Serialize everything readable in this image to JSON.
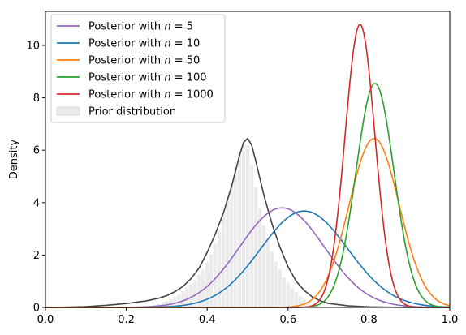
{
  "chart_data": {
    "type": "line",
    "xlabel": "",
    "ylabel": "Density",
    "xlim": [
      0.0,
      1.0
    ],
    "ylim": [
      0,
      11.3
    ],
    "x_ticks": [
      "0.0",
      "0.2",
      "0.4",
      "0.6",
      "0.8",
      "1.0"
    ],
    "y_ticks": [
      "0",
      "2",
      "4",
      "6",
      "8",
      "10"
    ],
    "grid": false,
    "legend_position": "top-left",
    "series": [
      {
        "name": "Posterior with n = 5",
        "legend_prefix": "Posterior with ",
        "legend_math": "n = 5",
        "color": "#9467bd",
        "type": "line",
        "mean": 0.585,
        "sd": 0.105,
        "peak": 3.8
      },
      {
        "name": "Posterior with n = 10",
        "legend_prefix": "Posterior with ",
        "legend_math": "n = 10",
        "color": "#1f77b4",
        "type": "line",
        "mean": 0.64,
        "sd": 0.108,
        "peak": 3.68
      },
      {
        "name": "Posterior with n = 50",
        "legend_prefix": "Posterior with ",
        "legend_math": "n = 50",
        "color": "#ff7f0e",
        "type": "line",
        "mean": 0.813,
        "sd": 0.062,
        "peak": 6.45
      },
      {
        "name": "Posterior with n = 100",
        "legend_prefix": "Posterior with ",
        "legend_math": "n = 100",
        "color": "#2ca02c",
        "type": "line",
        "mean": 0.815,
        "sd": 0.047,
        "peak": 8.55
      },
      {
        "name": "Posterior with n = 1000",
        "legend_prefix": "Posterior with ",
        "legend_math": "n = 1000",
        "color": "#d62728",
        "type": "line",
        "mean": 0.778,
        "sd": 0.037,
        "peak": 10.8
      }
    ],
    "prior": {
      "name": "Prior distribution",
      "color": "#dddddd",
      "line_color": "#444444",
      "bins_x": [
        0.27,
        0.28,
        0.29,
        0.3,
        0.31,
        0.32,
        0.33,
        0.34,
        0.35,
        0.36,
        0.37,
        0.38,
        0.39,
        0.4,
        0.41,
        0.42,
        0.43,
        0.44,
        0.45,
        0.46,
        0.47,
        0.48,
        0.49,
        0.5,
        0.51,
        0.52,
        0.53,
        0.54,
        0.55,
        0.56,
        0.57,
        0.58,
        0.59,
        0.6,
        0.61,
        0.62,
        0.63,
        0.64,
        0.65,
        0.66
      ],
      "bin_heights": [
        0.12,
        0.15,
        0.2,
        0.25,
        0.32,
        0.42,
        0.5,
        0.62,
        0.75,
        0.9,
        1.05,
        1.25,
        1.45,
        1.75,
        2.05,
        2.45,
        2.9,
        3.55,
        4.15,
        4.75,
        5.35,
        5.95,
        6.3,
        6.2,
        5.45,
        4.6,
        3.8,
        3.15,
        2.6,
        2.15,
        1.75,
        1.45,
        1.15,
        0.95,
        0.75,
        0.6,
        0.45,
        0.32,
        0.22,
        0.12
      ],
      "curve_x": [
        0.0,
        0.05,
        0.1,
        0.15,
        0.2,
        0.25,
        0.28,
        0.3,
        0.32,
        0.34,
        0.36,
        0.38,
        0.4,
        0.42,
        0.44,
        0.46,
        0.48,
        0.49,
        0.5,
        0.51,
        0.52,
        0.54,
        0.56,
        0.58,
        0.6,
        0.62,
        0.64,
        0.66,
        0.68,
        0.7,
        0.75,
        0.8,
        0.9,
        1.0
      ],
      "curve_y": [
        0.0,
        0.01,
        0.03,
        0.08,
        0.15,
        0.25,
        0.35,
        0.45,
        0.6,
        0.8,
        1.1,
        1.5,
        2.1,
        2.8,
        3.6,
        4.6,
        5.8,
        6.3,
        6.45,
        6.2,
        5.6,
        4.3,
        3.2,
        2.3,
        1.55,
        1.0,
        0.65,
        0.4,
        0.25,
        0.15,
        0.06,
        0.02,
        0.0,
        0.0
      ]
    }
  }
}
